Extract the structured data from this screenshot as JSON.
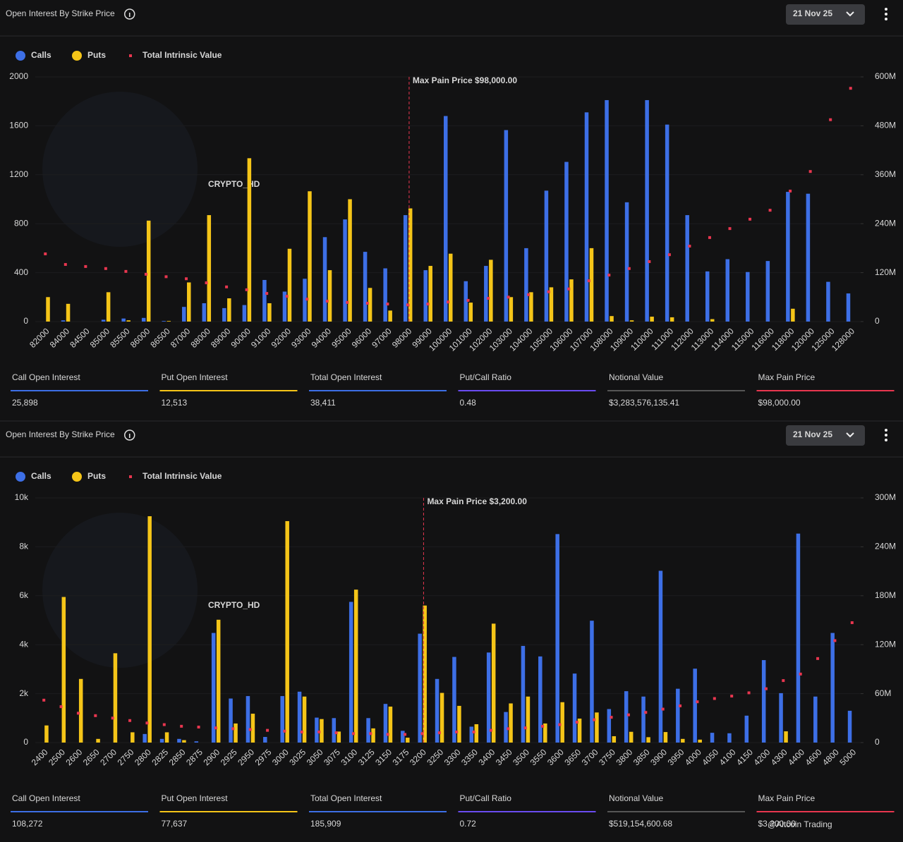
{
  "watermark": "CRYPTO_HD",
  "credit": "@Altcoin Trading",
  "chart_data": [
    {
      "type": "bar",
      "title": "Open Interest By Strike Price",
      "date": "21 Nov 25",
      "categories": [
        "82000",
        "84000",
        "84500",
        "85000",
        "85500",
        "86000",
        "86500",
        "87000",
        "88000",
        "89000",
        "90000",
        "91000",
        "92000",
        "93000",
        "94000",
        "95000",
        "96000",
        "97000",
        "98000",
        "99000",
        "100000",
        "101000",
        "102000",
        "103000",
        "104000",
        "105000",
        "106000",
        "107000",
        "108000",
        "109000",
        "110000",
        "111000",
        "112000",
        "113000",
        "114000",
        "115000",
        "116000",
        "118000",
        "120000",
        "125000",
        "128000"
      ],
      "series": [
        {
          "name": "Calls",
          "color": "#3d6fe6",
          "values": [
            0,
            10,
            0,
            15,
            25,
            30,
            5,
            120,
            150,
            110,
            135,
            340,
            245,
            350,
            690,
            835,
            570,
            435,
            870,
            420,
            1680,
            330,
            455,
            1565,
            600,
            1070,
            1305,
            1710,
            1810,
            975,
            1810,
            1610,
            870,
            410,
            510,
            405,
            495,
            1060,
            1045,
            325,
            230
          ]
        },
        {
          "name": "Puts",
          "color": "#f5c518",
          "values": [
            200,
            145,
            0,
            240,
            10,
            825,
            5,
            320,
            870,
            190,
            1335,
            150,
            595,
            1065,
            420,
            1000,
            275,
            90,
            925,
            455,
            555,
            155,
            505,
            200,
            240,
            280,
            345,
            600,
            45,
            10,
            40,
            35,
            0,
            20,
            0,
            0,
            0,
            105,
            0,
            0,
            0
          ]
        },
        {
          "name": "Total Intrinsic Value",
          "color": "#e8364f",
          "axis": "y2",
          "type": "scatter",
          "values": [
            166000000,
            140000000,
            135000000,
            130000000,
            123000000,
            116000000,
            110000000,
            105000000,
            95000000,
            85000000,
            78000000,
            69000000,
            62000000,
            55000000,
            50000000,
            47000000,
            45000000,
            43000000,
            41000000,
            43000000,
            48000000,
            52000000,
            57000000,
            60000000,
            66000000,
            73000000,
            80000000,
            100000000,
            114000000,
            130000000,
            147000000,
            164000000,
            185000000,
            206000000,
            228000000,
            251000000,
            273000000,
            320000000,
            368000000,
            495000000,
            572000000
          ]
        }
      ],
      "ylim": [
        0,
        2000
      ],
      "yticks": [
        0,
        400,
        800,
        1200,
        1600,
        2000
      ],
      "y2lim": [
        0,
        600000000
      ],
      "y2ticks": [
        0,
        {
          "value": 120000000,
          "label": "120M"
        },
        {
          "value": 240000000,
          "label": "240M"
        },
        {
          "value": 360000000,
          "label": "360M"
        },
        {
          "value": 480000000,
          "label": "480M"
        },
        {
          "value": 600000000,
          "label": "600M"
        }
      ],
      "max_pain": {
        "category": "98000",
        "label": "Max Pain Price $98,000.00"
      },
      "stats": [
        {
          "label": "Call Open Interest",
          "value": "25,898",
          "color": "#3d6fe6"
        },
        {
          "label": "Put Open Interest",
          "value": "12,513",
          "color": "#f5c518"
        },
        {
          "label": "Total Open Interest",
          "value": "38,411",
          "color": "#3d6fe6"
        },
        {
          "label": "Put/Call Ratio",
          "value": "0.48",
          "color": "#6a4cf0"
        },
        {
          "label": "Notional Value",
          "value": "$3,283,576,135.41",
          "color": "#555555"
        },
        {
          "label": "Max Pain Price",
          "value": "$98,000.00",
          "color": "#e8364f"
        }
      ]
    },
    {
      "type": "bar",
      "title": "Open Interest By Strike Price",
      "date": "21 Nov 25",
      "categories": [
        "2400",
        "2500",
        "2600",
        "2650",
        "2700",
        "2750",
        "2800",
        "2825",
        "2850",
        "2875",
        "2900",
        "2925",
        "2950",
        "2975",
        "3000",
        "3025",
        "3050",
        "3075",
        "3100",
        "3125",
        "3150",
        "3175",
        "3200",
        "3250",
        "3300",
        "3350",
        "3400",
        "3450",
        "3500",
        "3550",
        "3600",
        "3650",
        "3700",
        "3750",
        "3800",
        "3850",
        "3900",
        "3950",
        "4000",
        "4050",
        "4100",
        "4150",
        "4200",
        "4300",
        "4400",
        "4600",
        "4800",
        "5000"
      ],
      "series": [
        {
          "name": "Calls",
          "color": "#3d6fe6",
          "values": [
            0,
            0,
            0,
            0,
            0,
            0,
            350,
            150,
            150,
            50,
            4480,
            1800,
            1900,
            230,
            1900,
            2080,
            1020,
            1000,
            5750,
            1000,
            1580,
            480,
            4450,
            2600,
            3500,
            650,
            3680,
            1250,
            3950,
            3520,
            8520,
            2820,
            4980,
            1370,
            2100,
            1880,
            7020,
            2200,
            3020,
            400,
            380,
            1100,
            3370,
            2020,
            8540,
            1880,
            4480,
            1300
          ]
        },
        {
          "name": "Puts",
          "color": "#f5c518",
          "values": [
            700,
            5950,
            2600,
            150,
            3650,
            420,
            9250,
            420,
            100,
            0,
            5020,
            780,
            1180,
            0,
            9050,
            1880,
            960,
            450,
            6250,
            580,
            1470,
            200,
            5600,
            2030,
            1500,
            750,
            4860,
            1600,
            1880,
            780,
            1650,
            980,
            1230,
            260,
            440,
            220,
            430,
            150,
            120,
            0,
            0,
            0,
            0,
            460,
            0,
            0,
            0,
            0
          ]
        },
        {
          "name": "Total Intrinsic Value",
          "color": "#e8364f",
          "axis": "y2",
          "type": "scatter",
          "values": [
            52000000,
            44000000,
            36000000,
            33000000,
            30000000,
            27000000,
            24000000,
            22000000,
            20000000,
            19000000,
            18000000,
            17000000,
            16000000,
            15000000,
            14000000,
            13000000,
            13000000,
            12000000,
            11000000,
            11000000,
            10000000,
            10000000,
            11000000,
            12000000,
            13000000,
            13000000,
            15000000,
            17000000,
            18000000,
            20000000,
            22000000,
            25000000,
            28000000,
            31000000,
            34000000,
            37000000,
            41000000,
            45000000,
            50000000,
            54000000,
            57000000,
            61000000,
            66000000,
            76000000,
            84000000,
            103000000,
            125000000,
            147000000
          ]
        }
      ],
      "ylim": [
        0,
        10000
      ],
      "yticks": [
        0,
        {
          "value": 2000,
          "label": "2k"
        },
        {
          "value": 4000,
          "label": "4k"
        },
        {
          "value": 6000,
          "label": "6k"
        },
        {
          "value": 8000,
          "label": "8k"
        },
        {
          "value": 10000,
          "label": "10k"
        }
      ],
      "y2lim": [
        0,
        300000000
      ],
      "y2ticks": [
        0,
        {
          "value": 60000000,
          "label": "60M"
        },
        {
          "value": 120000000,
          "label": "120M"
        },
        {
          "value": 180000000,
          "label": "180M"
        },
        {
          "value": 240000000,
          "label": "240M"
        },
        {
          "value": 300000000,
          "label": "300M"
        }
      ],
      "max_pain": {
        "category": "3200",
        "label": "Max Pain Price $3,200.00"
      },
      "stats": [
        {
          "label": "Call Open Interest",
          "value": "108,272",
          "color": "#3d6fe6"
        },
        {
          "label": "Put Open Interest",
          "value": "77,637",
          "color": "#f5c518"
        },
        {
          "label": "Total Open Interest",
          "value": "185,909",
          "color": "#3d6fe6"
        },
        {
          "label": "Put/Call Ratio",
          "value": "0.72",
          "color": "#6a4cf0"
        },
        {
          "label": "Notional Value",
          "value": "$519,154,600.68",
          "color": "#555555"
        },
        {
          "label": "Max Pain Price",
          "value": "$3,200.00",
          "color": "#e8364f"
        }
      ]
    }
  ]
}
